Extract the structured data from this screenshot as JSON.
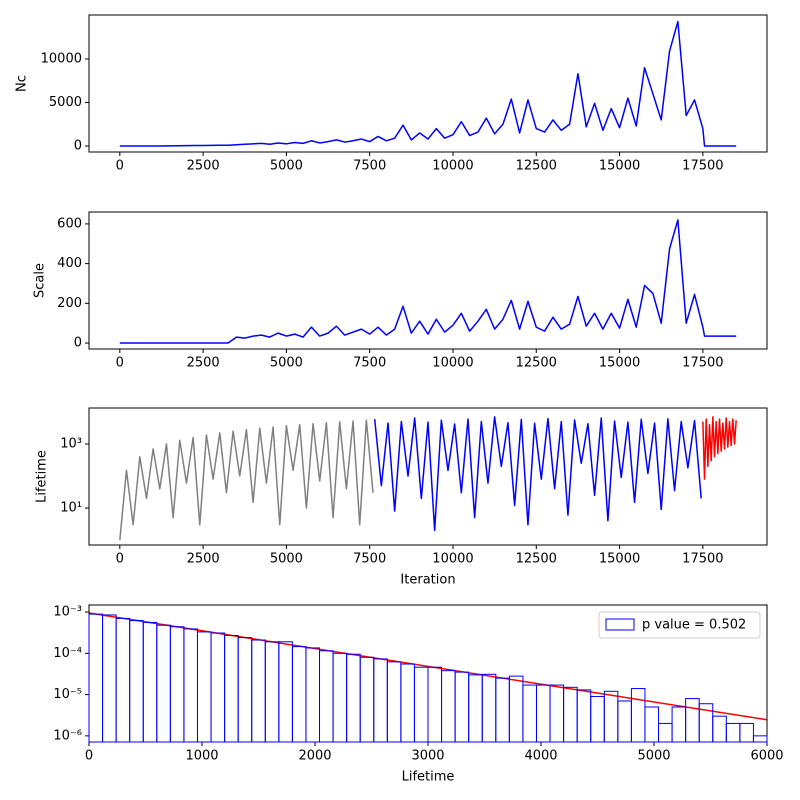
{
  "chart_data": [
    {
      "type": "line",
      "ylabel": "Nc",
      "xlim": [
        -925,
        19425
      ],
      "ylim": [
        -690,
        15060
      ],
      "xticks": [
        0,
        2500,
        5000,
        7500,
        10000,
        12500,
        15000,
        17500
      ],
      "yticks": [
        0,
        5000,
        10000
      ],
      "series": [
        {
          "color": "#0000ff",
          "x": [
            0,
            250,
            500,
            750,
            1000,
            1250,
            1500,
            1750,
            2000,
            2250,
            2500,
            2750,
            3000,
            3250,
            3500,
            3750,
            4000,
            4250,
            4500,
            4750,
            5000,
            5250,
            5500,
            5750,
            6000,
            6250,
            6500,
            6750,
            7000,
            7250,
            7500,
            7750,
            8000,
            8250,
            8500,
            8750,
            9000,
            9250,
            9500,
            9750,
            10000,
            10250,
            10500,
            10750,
            11000,
            11250,
            11500,
            11750,
            12000,
            12250,
            12500,
            12750,
            13000,
            13250,
            13500,
            13750,
            14000,
            14250,
            14500,
            14750,
            15000,
            15250,
            15500,
            15750,
            16000,
            16250,
            16500,
            16750,
            17000,
            17250,
            17500,
            17550,
            18500
          ],
          "values": [
            0,
            0,
            0,
            0,
            0,
            0,
            20,
            30,
            40,
            50,
            60,
            70,
            80,
            90,
            150,
            200,
            250,
            300,
            200,
            350,
            250,
            400,
            300,
            600,
            350,
            500,
            700,
            450,
            600,
            800,
            500,
            1100,
            600,
            900,
            2400,
            700,
            1500,
            800,
            2000,
            900,
            1300,
            2800,
            1200,
            1600,
            3200,
            1400,
            2500,
            5400,
            1500,
            5300,
            2000,
            1600,
            3000,
            1800,
            2500,
            8300,
            2200,
            4900,
            1800,
            4300,
            2100,
            5500,
            2300,
            9000,
            6000,
            3000,
            10900,
            14300,
            3500,
            5300,
            2000,
            0,
            0
          ]
        }
      ]
    },
    {
      "type": "line",
      "ylabel": "Scale",
      "xlim": [
        -925,
        19425
      ],
      "ylim": [
        -30,
        660
      ],
      "xticks": [
        0,
        2500,
        5000,
        7500,
        10000,
        12500,
        15000,
        17500
      ],
      "yticks": [
        0,
        200,
        400,
        600
      ],
      "series": [
        {
          "color": "#0000ff",
          "x": [
            0,
            250,
            500,
            750,
            1000,
            1250,
            1500,
            1750,
            2000,
            2250,
            2500,
            2750,
            3000,
            3250,
            3500,
            3750,
            4000,
            4250,
            4500,
            4750,
            5000,
            5250,
            5500,
            5750,
            6000,
            6250,
            6500,
            6750,
            7000,
            7250,
            7500,
            7750,
            8000,
            8250,
            8500,
            8750,
            9000,
            9250,
            9500,
            9750,
            10000,
            10250,
            10500,
            10750,
            11000,
            11250,
            11500,
            11750,
            12000,
            12250,
            12500,
            12750,
            13000,
            13250,
            13500,
            13750,
            14000,
            14250,
            14500,
            14750,
            15000,
            15250,
            15500,
            15750,
            16000,
            16250,
            16500,
            16750,
            17000,
            17250,
            17500,
            17550,
            18500
          ],
          "values": [
            0,
            0,
            0,
            0,
            0,
            0,
            0,
            0,
            0,
            0,
            0,
            0,
            0,
            0,
            30,
            25,
            35,
            40,
            30,
            50,
            35,
            45,
            30,
            80,
            35,
            50,
            85,
            40,
            55,
            70,
            45,
            80,
            40,
            70,
            185,
            50,
            110,
            45,
            120,
            55,
            90,
            150,
            60,
            110,
            170,
            70,
            120,
            215,
            70,
            210,
            80,
            60,
            130,
            70,
            95,
            235,
            85,
            150,
            70,
            150,
            75,
            220,
            80,
            290,
            250,
            100,
            475,
            620,
            100,
            245,
            80,
            35,
            35
          ]
        }
      ]
    },
    {
      "type": "line",
      "ylabel": "Lifetime",
      "xlabel": "Iteration",
      "log_y": true,
      "xlim": [
        -925,
        19425
      ],
      "ylim": [
        0.7,
        13300
      ],
      "xticks": [
        0,
        2500,
        5000,
        7500,
        10000,
        12500,
        15000,
        17500
      ],
      "yticks": [
        {
          "value": 10,
          "label": "10¹"
        },
        {
          "value": 1000,
          "label": "10³"
        }
      ],
      "series": [
        {
          "color": "#808080",
          "x": [
            0,
            200,
            400,
            600,
            800,
            1000,
            1200,
            1400,
            1600,
            1800,
            2000,
            2200,
            2400,
            2600,
            2800,
            3000,
            3200,
            3400,
            3600,
            3800,
            4000,
            4200,
            4400,
            4600,
            4800,
            5000,
            5200,
            5400,
            5600,
            5800,
            6000,
            6200,
            6400,
            6600,
            6800,
            7000,
            7200,
            7400,
            7600
          ],
          "values": [
            1,
            150,
            3,
            400,
            20,
            700,
            40,
            1000,
            5,
            1300,
            60,
            1600,
            3,
            1900,
            80,
            2200,
            30,
            2500,
            100,
            2800,
            15,
            3100,
            60,
            3400,
            3,
            3700,
            150,
            4000,
            10,
            4300,
            70,
            4600,
            5,
            4900,
            40,
            5200,
            3,
            5500,
            30
          ]
        },
        {
          "color": "#0000ff",
          "x": [
            7650,
            7850,
            8050,
            8250,
            8450,
            8650,
            8850,
            9050,
            9250,
            9450,
            9650,
            9850,
            10050,
            10250,
            10450,
            10650,
            10850,
            11050,
            11250,
            11450,
            11650,
            11850,
            12050,
            12250,
            12450,
            12650,
            12850,
            13050,
            13250,
            13450,
            13650,
            13850,
            14050,
            14250,
            14450,
            14650,
            14850,
            15050,
            15250,
            15450,
            15650,
            15850,
            16050,
            16250,
            16450,
            16650,
            16850,
            17050,
            17250,
            17450
          ],
          "values": [
            6000,
            50,
            4500,
            8,
            5000,
            100,
            6500,
            20,
            4800,
            2,
            5500,
            150,
            4200,
            30,
            6000,
            5,
            5000,
            60,
            7000,
            200,
            4600,
            12,
            5800,
            3,
            4400,
            80,
            6200,
            40,
            5000,
            6,
            5600,
            250,
            4300,
            25,
            6500,
            4,
            5200,
            90,
            4800,
            15,
            5900,
            120,
            4500,
            9,
            6100,
            35,
            5000,
            180,
            5400,
            20
          ]
        },
        {
          "color": "#ff0000",
          "x": [
            17500,
            17550,
            17600,
            17650,
            17700,
            17750,
            17800,
            17850,
            17900,
            17950,
            18000,
            18050,
            18100,
            18150,
            18200,
            18250,
            18300,
            18350,
            18400,
            18450,
            18500
          ],
          "values": [
            5000,
            80,
            6000,
            200,
            4000,
            300,
            7000,
            400,
            5000,
            500,
            6000,
            600,
            4500,
            700,
            6500,
            800,
            5000,
            900,
            6000,
            1000,
            5500
          ]
        }
      ]
    },
    {
      "type": "histogram",
      "xlabel": "Lifetime",
      "log_y": true,
      "xlim": [
        0,
        6000
      ],
      "ylim": [
        7.1e-07,
        0.00148
      ],
      "xticks": [
        0,
        1000,
        2000,
        3000,
        4000,
        5000,
        6000
      ],
      "yticks": [
        {
          "value": 1e-06,
          "label": "10⁻⁶"
        },
        {
          "value": 1e-05,
          "label": "10⁻⁵"
        },
        {
          "value": 0.0001,
          "label": "10⁻⁴"
        },
        {
          "value": 0.001,
          "label": "10⁻³"
        }
      ],
      "legend": "upper right",
      "legend_label": "p value = 0.502",
      "color": "#0000ff",
      "bins": [
        0,
        120,
        240,
        360,
        480,
        600,
        720,
        840,
        960,
        1080,
        1200,
        1320,
        1440,
        1560,
        1680,
        1800,
        1920,
        2040,
        2160,
        2280,
        2400,
        2520,
        2640,
        2760,
        2880,
        3000,
        3120,
        3240,
        3360,
        3480,
        3600,
        3720,
        3840,
        3960,
        4080,
        4200,
        4320,
        4440,
        4560,
        4680,
        4800,
        4920,
        5040,
        5160,
        5280,
        5400,
        5520,
        5640,
        5760,
        5880,
        6000
      ],
      "values": [
        0.00089,
        0.00085,
        0.0007,
        0.00062,
        0.00056,
        0.00048,
        0.00044,
        0.00039,
        0.00033,
        0.00031,
        0.00027,
        0.00024,
        0.00021,
        0.00019,
        0.00019,
        0.000145,
        0.000135,
        0.000115,
        0.0001,
        9.5e-05,
        8e-05,
        7.3e-05,
        6.2e-05,
        5.5e-05,
        4.6e-05,
        4.6e-05,
        3.8e-05,
        3.5e-05,
        3e-05,
        3.1e-05,
        2.5e-05,
        2.8e-05,
        1.7e-05,
        1.7e-05,
        1.7e-05,
        1.5e-05,
        1.3e-05,
        9e-06,
        1.2e-05,
        7e-06,
        1.4e-05,
        5e-06,
        2e-06,
        5e-06,
        8e-06,
        6e-06,
        3e-06,
        2e-06,
        2e-06,
        1e-06
      ],
      "fit": {
        "color": "#ff0000",
        "x": [
          0,
          6000
        ],
        "values": [
          0.00095,
          2.45e-06
        ]
      }
    }
  ]
}
